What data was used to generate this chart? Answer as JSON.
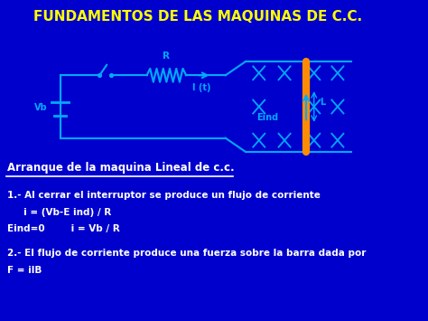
{
  "bg_color": "#0000cc",
  "title": "FUNDAMENTOS DE LAS MAQUINAS DE C.C.",
  "title_color": "#ffff00",
  "title_fontsize": 11,
  "circuit_color": "#00aaff",
  "bar_color": "#ff8c00",
  "text_color": "#ffffff",
  "heading_color": "#ffffff",
  "line1": "Arranque de la maquina Lineal de c.c.",
  "line2": "1.- Al cerrar el interruptor se produce un flujo de corriente",
  "line3": "     i = (Vb-E ind) / R",
  "line4": "Eind=0        i = Vb / R",
  "line5": "2.- El flujo de corriente produce una fuerza sobre la barra dada por",
  "line6": "F = ilB"
}
